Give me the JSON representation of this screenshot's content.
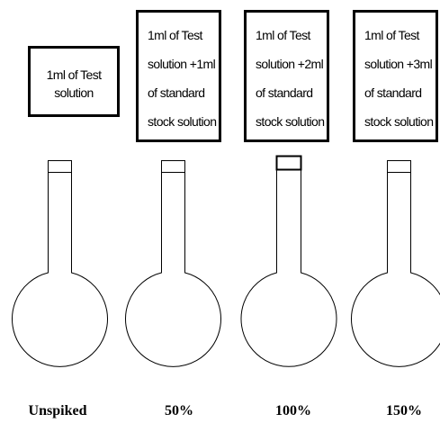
{
  "boxes": [
    {
      "lines": [
        "1ml of Test",
        "solution"
      ]
    },
    {
      "lines": [
        "1ml of Test",
        "solution +1ml",
        "of standard",
        "stock solution"
      ]
    },
    {
      "lines": [
        "1ml of Test",
        "solution +2ml",
        "of standard",
        "stock solution"
      ]
    },
    {
      "lines": [
        "1ml of Test",
        "solution +3ml",
        "of standard",
        "stock solution"
      ]
    }
  ],
  "captions": [
    "Unspiked",
    "50%",
    "100%",
    "150%"
  ]
}
